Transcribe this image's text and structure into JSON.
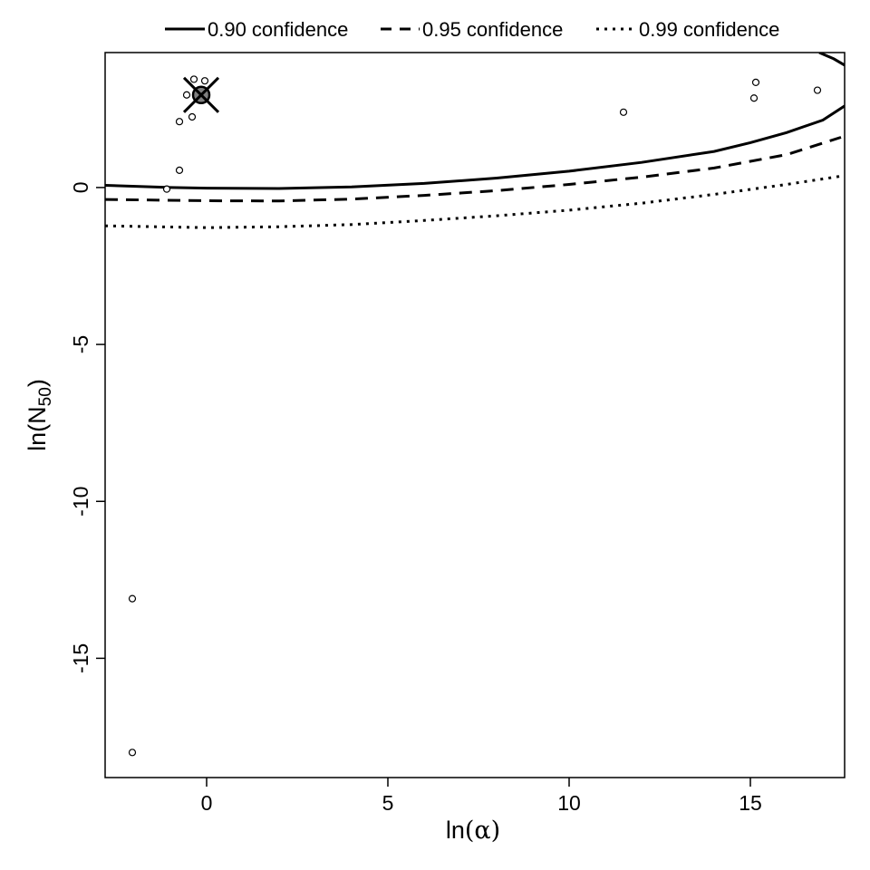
{
  "chart_data": {
    "type": "line",
    "xlabel_prefix": "ln",
    "xlabel_symbol": "α",
    "ylabel_prefix": "ln(N",
    "ylabel_sub": "50",
    "ylabel_suffix": ")",
    "xlim": [
      -2.8,
      17.6
    ],
    "ylim": [
      -18.8,
      4.3
    ],
    "x_ticks": [
      0,
      5,
      10,
      15
    ],
    "y_ticks": [
      0,
      -5,
      -10,
      -15
    ],
    "legend": [
      {
        "label": "0.90 confidence",
        "style": "solid"
      },
      {
        "label": "0.95 confidence",
        "style": "dashed"
      },
      {
        "label": "0.99 confidence",
        "style": "dotted"
      }
    ],
    "series": [
      {
        "name": "0.90 confidence",
        "style": "solid",
        "x": [
          -2.8,
          -1,
          0,
          2,
          4,
          6,
          8,
          10,
          12,
          14,
          15,
          16,
          17,
          17.6
        ],
        "y": [
          0.07,
          0.0,
          -0.02,
          -0.03,
          0.02,
          0.13,
          0.3,
          0.52,
          0.8,
          1.15,
          1.43,
          1.75,
          2.15,
          2.6
        ]
      },
      {
        "name": "0.90 confidence",
        "style": "solid",
        "x": [
          16.9,
          17.3,
          17.6
        ],
        "y": [
          4.3,
          4.1,
          3.9
        ]
      },
      {
        "name": "0.95 confidence",
        "style": "dashed",
        "x": [
          -2.8,
          0,
          2,
          4,
          6,
          8,
          10,
          12,
          14,
          16,
          17.5
        ],
        "y": [
          -0.38,
          -0.42,
          -0.43,
          -0.37,
          -0.25,
          -0.1,
          0.1,
          0.33,
          0.62,
          1.05,
          1.6
        ]
      },
      {
        "name": "0.99 confidence",
        "style": "dotted",
        "x": [
          -2.8,
          0,
          2,
          4,
          6,
          8,
          10,
          12,
          14,
          16,
          17.6
        ],
        "y": [
          -1.22,
          -1.28,
          -1.25,
          -1.18,
          -1.05,
          -0.9,
          -0.72,
          -0.5,
          -0.22,
          0.1,
          0.38
        ]
      }
    ],
    "scatter": {
      "x": [
        -0.35,
        -0.05,
        -0.55,
        -0.75,
        -0.4,
        -0.75,
        -1.1,
        11.5,
        15.1,
        15.15,
        16.85,
        -2.05,
        -2.05
      ],
      "y": [
        3.45,
        3.4,
        2.95,
        2.1,
        2.25,
        0.55,
        -0.05,
        2.4,
        2.85,
        3.35,
        3.1,
        -13.1,
        -18.0
      ]
    },
    "best_fit": {
      "x": -0.15,
      "y": 2.95
    }
  }
}
